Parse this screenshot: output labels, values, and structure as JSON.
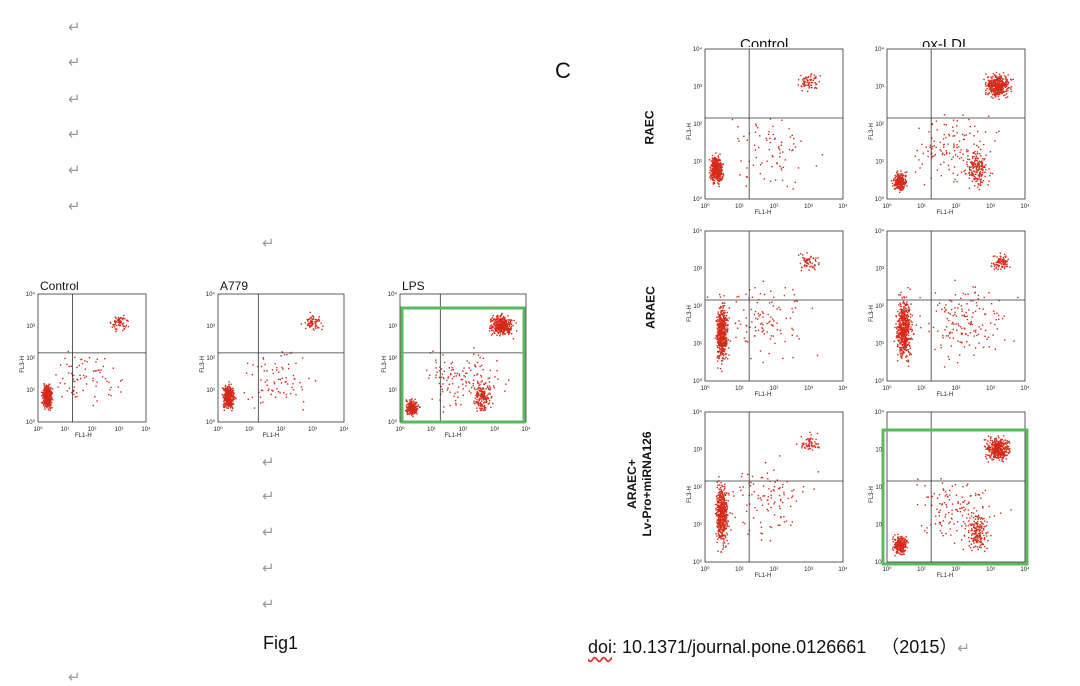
{
  "paragraph_mark": "↵",
  "fig1": {
    "caption": "Fig1",
    "panels": [
      {
        "label": "Control",
        "pattern": "control"
      },
      {
        "label": "A779",
        "pattern": "control"
      },
      {
        "label": "LPS",
        "pattern": "lps",
        "highlight": true
      }
    ]
  },
  "figC": {
    "letter": "C",
    "column_headers_cropped": [
      "Control",
      "ox-LDL"
    ],
    "rows": [
      {
        "label": "RAEC"
      },
      {
        "label": "ARAEC"
      },
      {
        "label_line1": "ARAEC+",
        "label_line2": "Lv-Pro+miRNA126"
      }
    ],
    "doi_prefix": "doi",
    "doi_rest": ": 10.1371/journal.pone.0126661",
    "year": "（2015）"
  },
  "axes": {
    "x_label": "FL1-H",
    "y_label": "FL3-H",
    "ticks": [
      "10⁰",
      "10¹",
      "10²",
      "10³",
      "10⁴"
    ]
  },
  "colors": {
    "dots": "#d42a1a",
    "highlight": "#5cb85c",
    "axis": "#333333"
  }
}
